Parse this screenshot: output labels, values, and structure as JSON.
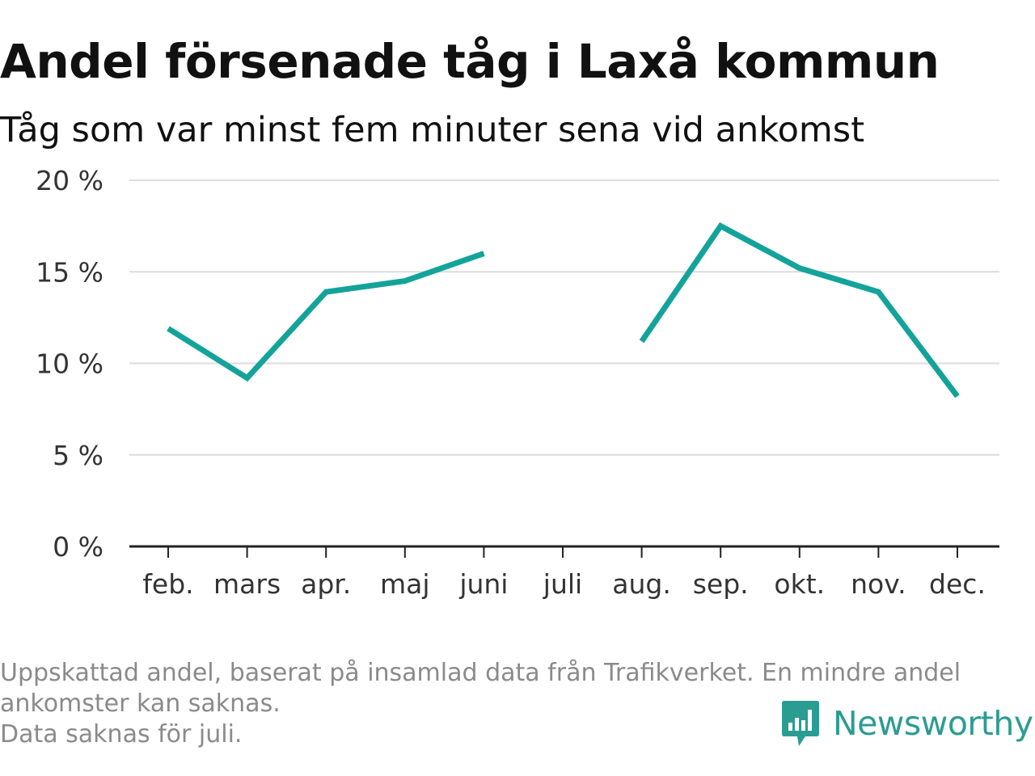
{
  "header": {
    "title": "Andel försenade tåg i Laxå kommun",
    "subtitle": "Tåg som var minst fem minuter sena vid ankomst"
  },
  "chart_data": {
    "type": "line",
    "categories": [
      "feb.",
      "mars",
      "apr.",
      "maj",
      "juni",
      "juli",
      "aug.",
      "sep.",
      "okt.",
      "nov.",
      "dec."
    ],
    "series": [
      {
        "values": [
          11.9,
          9.2,
          13.9,
          14.5,
          16.0,
          null,
          11.2,
          17.5,
          15.2,
          13.9,
          8.2
        ]
      }
    ],
    "yticks": [
      0,
      5,
      10,
      15,
      20
    ],
    "ytick_suffix": " %",
    "ylim": [
      0,
      20
    ],
    "grid": true,
    "line_color": "#13a39a"
  },
  "footnote": {
    "lines": [
      "Uppskattad andel, baserat på insamlad data från Trafikverket. En mindre andel",
      "ankomster kan saknas.",
      "Data saknas för juli."
    ]
  },
  "brand": {
    "name": "Newsworthy",
    "logo_icon": "bar-chart-speech-bubble-icon",
    "color": "#2b9c92"
  }
}
